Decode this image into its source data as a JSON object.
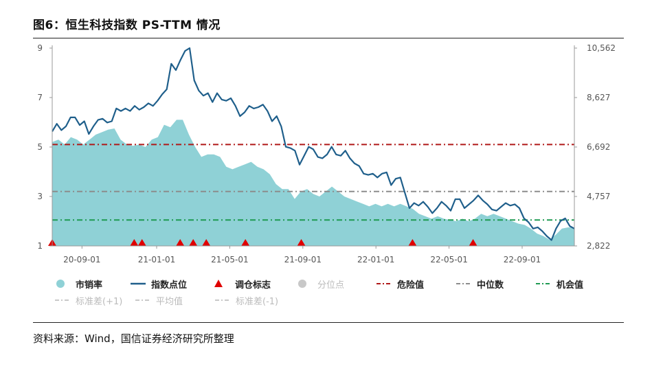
{
  "title": "图6：恒生科技指数 PS-TTM 情况",
  "source": "资料来源：Wind，国信证券经济研究所整理",
  "legend": {
    "ps": "市销率",
    "index": "指数点位",
    "rebalance": "调仓标志",
    "percentile": "分位点",
    "danger": "危险值",
    "median": "中位数",
    "opportunity": "机会值",
    "std_plus": "标准差(+1)",
    "mean": "平均值",
    "std_minus": "标准差(-1)"
  },
  "colors": {
    "area": "#8fd1d6",
    "line": "#1f5f8b",
    "danger": "#b01818",
    "median": "#8c8c8c",
    "opportunity": "#1f9a52",
    "marker": "#e00000",
    "percentile": "#c8c8c8"
  },
  "chart_data": {
    "type": "area",
    "x_ticks": [
      "20-09-01",
      "21-01-01",
      "21-05-01",
      "21-09-01",
      "22-01-01",
      "22-05-01",
      "22-09-01"
    ],
    "y_left_ticks": [
      "1",
      "3",
      "5",
      "7",
      "9"
    ],
    "y_right_ticks": [
      "2,822",
      "4,757",
      "6,692",
      "8,627",
      "10,562"
    ],
    "y_left_range": [
      1,
      9
    ],
    "y_right_range": [
      2822,
      10562
    ],
    "series": [
      {
        "name": "市销率",
        "axis": "left",
        "type": "area",
        "values": [
          5.2,
          5.3,
          5.1,
          5.4,
          5.3,
          5.1,
          5.3,
          5.5,
          5.6,
          5.7,
          5.75,
          5.3,
          5.1,
          5.05,
          5.1,
          5.0,
          5.3,
          5.4,
          5.9,
          5.8,
          6.1,
          6.1,
          5.5,
          5.0,
          4.6,
          4.7,
          4.7,
          4.6,
          4.2,
          4.1,
          4.2,
          4.3,
          4.4,
          4.2,
          4.1,
          3.9,
          3.5,
          3.3,
          3.3,
          2.9,
          3.2,
          3.3,
          3.1,
          3.0,
          3.2,
          3.4,
          3.2,
          3.0,
          2.9,
          2.8,
          2.7,
          2.6,
          2.7,
          2.6,
          2.7,
          2.6,
          2.7,
          2.6,
          2.5,
          2.3,
          2.2,
          2.1,
          2.2,
          2.1,
          2.05,
          2.0,
          2.1,
          2.0,
          2.1,
          2.3,
          2.2,
          2.3,
          2.2,
          2.1,
          2.0,
          1.9,
          1.85,
          1.7,
          1.5,
          1.4,
          1.25,
          1.45,
          1.7,
          1.75,
          1.75
        ]
      },
      {
        "name": "指数点位",
        "axis": "right",
        "type": "line",
        "values": [
          7300,
          7600,
          7350,
          7500,
          7850,
          7850,
          7550,
          7700,
          7200,
          7500,
          7750,
          7800,
          7650,
          7700,
          8200,
          8100,
          8200,
          8100,
          8300,
          8150,
          8250,
          8400,
          8300,
          8500,
          8750,
          8950,
          9950,
          9700,
          10100,
          10450,
          10562,
          9300,
          8900,
          8700,
          8800,
          8450,
          8800,
          8550,
          8500,
          8600,
          8300,
          7900,
          8050,
          8300,
          8200,
          8250,
          8350,
          8100,
          7700,
          7900,
          7500,
          6700,
          6650,
          6550,
          6000,
          6350,
          6700,
          6600,
          6300,
          6250,
          6400,
          6700,
          6400,
          6350,
          6550,
          6250,
          6050,
          5950,
          5650,
          5600,
          5650,
          5500,
          5650,
          5700,
          5200,
          5450,
          5500,
          4900,
          4300,
          4500,
          4400,
          4550,
          4350,
          4100,
          4300,
          4550,
          4400,
          4200,
          4650,
          4650,
          4300,
          4450,
          4600,
          4800,
          4600,
          4450,
          4250,
          4200,
          4350,
          4500,
          4400,
          4450,
          4300,
          3900,
          3750,
          3500,
          3550,
          3400,
          3200,
          3050,
          3500,
          3800,
          3900,
          3600,
          3500
        ]
      },
      {
        "name": "危险值",
        "axis": "left",
        "type": "hline",
        "value": 5.1
      },
      {
        "name": "中位数",
        "axis": "left",
        "type": "hline",
        "value": 3.2
      },
      {
        "name": "机会值",
        "axis": "left",
        "type": "hline",
        "value": 2.05
      }
    ],
    "rebalance_markers": [
      0.0,
      0.157,
      0.172,
      0.245,
      0.27,
      0.295,
      0.37,
      0.477,
      0.69,
      0.806
    ]
  }
}
